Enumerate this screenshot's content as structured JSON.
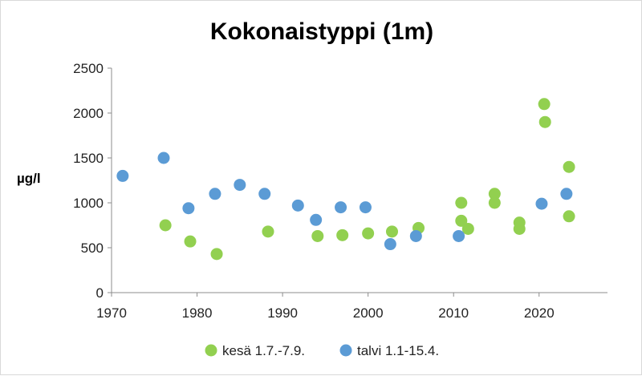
{
  "chart_data": {
    "type": "scatter",
    "title": "Kokonaistyppi (1m)",
    "ylabel": "µg/l",
    "xlabel": "",
    "xlim": [
      1970,
      2028
    ],
    "ylim": [
      0,
      2500
    ],
    "x_ticks": [
      1970,
      1980,
      1990,
      2000,
      2010,
      2020
    ],
    "y_ticks": [
      0,
      500,
      1000,
      1500,
      2000,
      2500
    ],
    "grid": false,
    "legend_position": "bottom",
    "series": [
      {
        "name": "kesä 1.7.-7.9.",
        "color": "#92d050",
        "points": [
          [
            1976.3,
            750
          ],
          [
            1979.2,
            570
          ],
          [
            1982.3,
            430
          ],
          [
            1988.3,
            680
          ],
          [
            1994.1,
            630
          ],
          [
            1997.0,
            640
          ],
          [
            2000.0,
            660
          ],
          [
            2002.8,
            680
          ],
          [
            2005.9,
            720
          ],
          [
            2010.9,
            1000
          ],
          [
            2010.9,
            800
          ],
          [
            2011.7,
            710
          ],
          [
            2014.8,
            1100
          ],
          [
            2014.8,
            1000
          ],
          [
            2017.7,
            780
          ],
          [
            2017.7,
            710
          ],
          [
            2020.6,
            2100
          ],
          [
            2020.7,
            1900
          ],
          [
            2023.5,
            1400
          ],
          [
            2023.5,
            850
          ]
        ]
      },
      {
        "name": "talvi 1.1-15.4.",
        "color": "#5b9bd5",
        "points": [
          [
            1971.3,
            1300
          ],
          [
            1976.1,
            1500
          ],
          [
            1979.0,
            940
          ],
          [
            1982.1,
            1100
          ],
          [
            1985.0,
            1200
          ],
          [
            1987.9,
            1100
          ],
          [
            1991.8,
            970
          ],
          [
            1993.9,
            810
          ],
          [
            1996.8,
            950
          ],
          [
            1999.7,
            950
          ],
          [
            2002.6,
            540
          ],
          [
            2005.6,
            630
          ],
          [
            2010.6,
            630
          ],
          [
            2020.3,
            990
          ],
          [
            2023.2,
            1100
          ]
        ]
      }
    ]
  }
}
